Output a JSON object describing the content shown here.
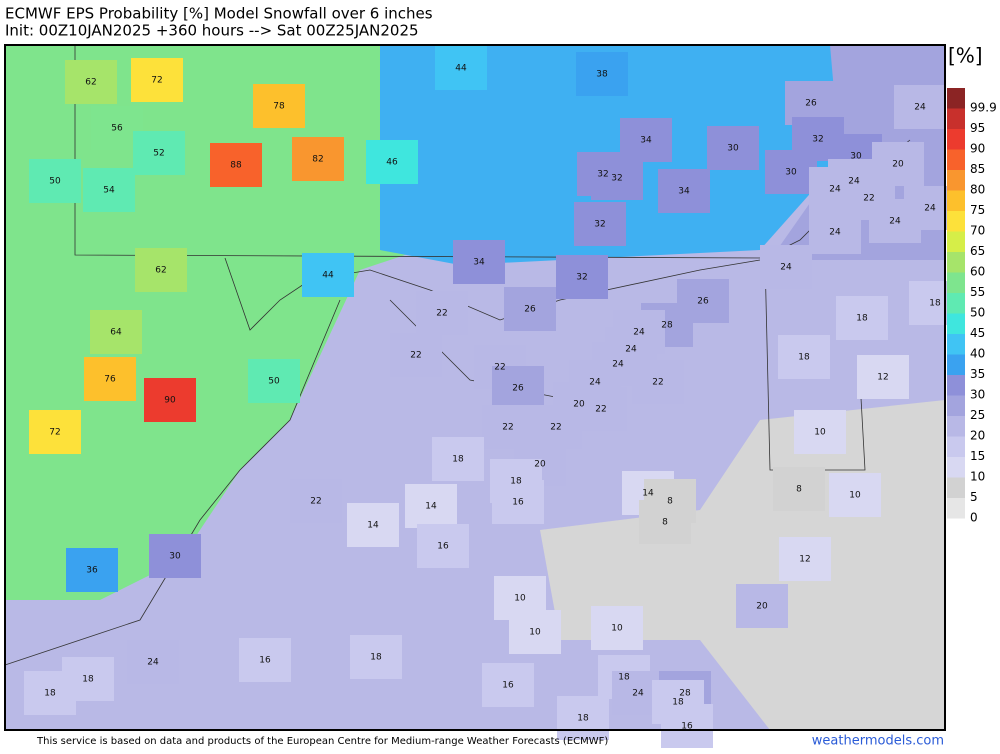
{
  "header": {
    "title": "ECMWF EPS Probability [%] Model Snowfall over 6 inches",
    "subtitle": "Init: 00Z10JAN2025 +360 hours --> Sat 00Z25JAN2025"
  },
  "colorbar": {
    "unit": "[%]",
    "ticks": [
      99.9,
      95,
      90,
      85,
      80,
      75,
      70,
      65,
      60,
      55,
      50,
      45,
      40,
      35,
      30,
      25,
      20,
      15,
      10,
      5,
      0
    ],
    "colors": [
      "#8b2424",
      "#c8302c",
      "#ec3b2e",
      "#f8622b",
      "#f9962f",
      "#fdc02c",
      "#fde13a",
      "#d6ee48",
      "#a6e46a",
      "#7ee58e",
      "#5feab2",
      "#3fe6de",
      "#40c4f4",
      "#3aa2f0",
      "#8e90d9",
      "#a3a4de",
      "#b8b8e6",
      "#c9c9ee",
      "#d8d8f2",
      "#d2d2d2",
      "#e6e6e6"
    ]
  },
  "map": {
    "labels": [
      62,
      72,
      78,
      44,
      38,
      26,
      24,
      56,
      52,
      88,
      82,
      46,
      34,
      30,
      32,
      30,
      20,
      50,
      54,
      32,
      32,
      34,
      30,
      24,
      24,
      22,
      24,
      24,
      32,
      24,
      34,
      44,
      62,
      32,
      24,
      26,
      22,
      26,
      28,
      24,
      18,
      18,
      64,
      22,
      24,
      24,
      18,
      22,
      76,
      50,
      26,
      24,
      22,
      12,
      90,
      20,
      22,
      72,
      22,
      22,
      10,
      18,
      20,
      18,
      14,
      8,
      8,
      10,
      22,
      14,
      16,
      14,
      8,
      16,
      30,
      12,
      36,
      10,
      20,
      10,
      10,
      24,
      16,
      18,
      18,
      16,
      18,
      18,
      24,
      28,
      18,
      18,
      16
    ]
  },
  "footer": {
    "credit": "This service is based on data and products of the European Centre for Medium-range Weather Forecasts (ECMWF)",
    "brand": "weathermodels.com"
  }
}
